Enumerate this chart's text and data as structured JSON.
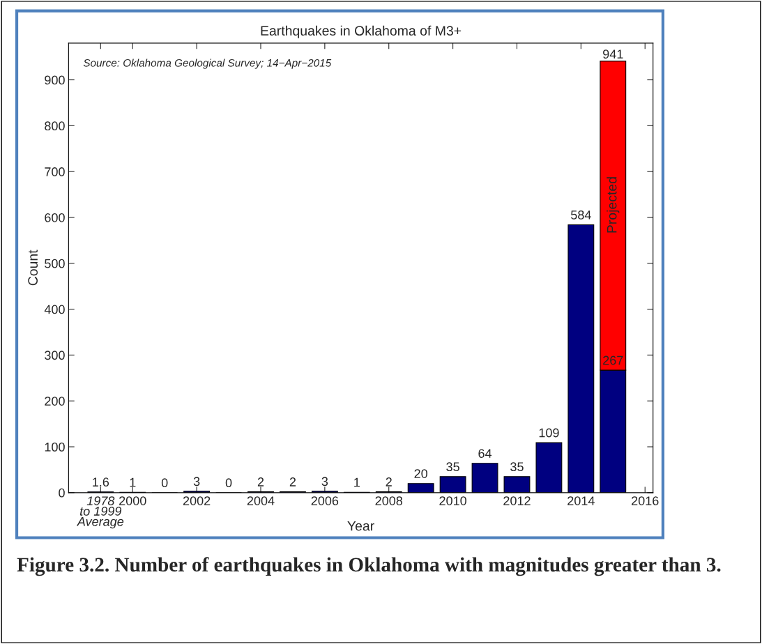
{
  "chart_data": {
    "type": "bar",
    "title": "Earthquakes in Oklahoma of M3+",
    "xlabel": "Year",
    "ylabel": "Count",
    "x": [
      1999,
      2000,
      2001,
      2002,
      2003,
      2004,
      2005,
      2006,
      2007,
      2008,
      2009,
      2010,
      2011,
      2012,
      2013,
      2014,
      2015
    ],
    "stacked": true,
    "series": [
      {
        "color": "#000080",
        "values": [
          1.6,
          1,
          0,
          3,
          0,
          2,
          2,
          3,
          1,
          2,
          20,
          35,
          64,
          35,
          109,
          584,
          267
        ],
        "value_labels": [
          "1.6",
          "1",
          "0",
          "3",
          "0",
          "2",
          "2",
          "3",
          "1",
          "2",
          "20",
          "35",
          "64",
          "35",
          "109",
          "584",
          "267"
        ]
      },
      {
        "color": "#ff0000",
        "values": [
          null,
          null,
          null,
          null,
          null,
          null,
          null,
          null,
          null,
          null,
          null,
          null,
          null,
          null,
          null,
          null,
          674
        ]
      }
    ],
    "totals": [
      null,
      null,
      null,
      null,
      null,
      null,
      null,
      null,
      null,
      null,
      null,
      null,
      null,
      null,
      null,
      null,
      "941"
    ],
    "xlim": [
      1998,
      2016.25
    ],
    "xticks": [
      {
        "value": 1999,
        "label": "1978\nto 1999\nAverage"
      },
      2000,
      2002,
      2004,
      2006,
      2008,
      2010,
      2012,
      2014,
      2016
    ],
    "ylim": [
      0,
      980
    ],
    "yticks": [
      0,
      100,
      200,
      300,
      400,
      500,
      600,
      700,
      800,
      900
    ],
    "annotations": [
      "Projected",
      "Source: Oklahoma Geological Survey; 14−Apr−2015",
      "Figure 3.2. Number of earthquakes in Oklahoma with magnitudes greater than 3."
    ]
  }
}
